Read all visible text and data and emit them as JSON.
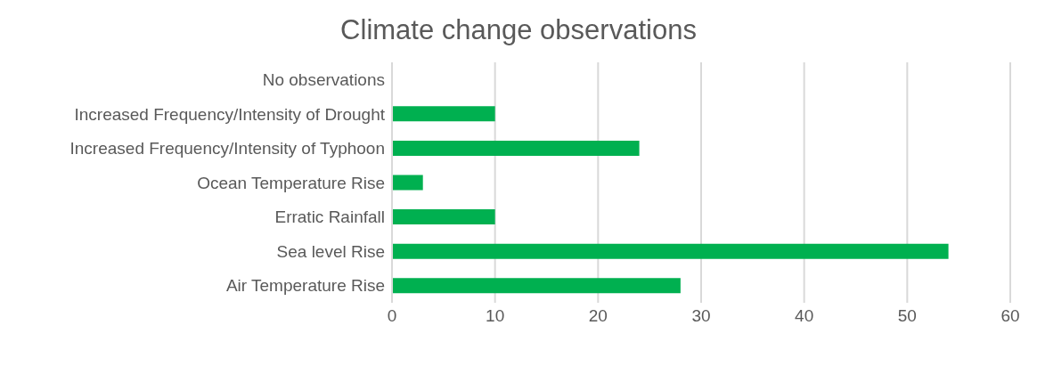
{
  "chart_data": {
    "type": "bar",
    "orientation": "horizontal",
    "title": "Climate change observations",
    "categories": [
      "No observations",
      "Increased Frequency/Intensity of Drought",
      "Increased Frequency/Intensity of Typhoon",
      "Ocean Temperature Rise",
      "Erratic Rainfall",
      "Sea level Rise",
      "Air Temperature Rise"
    ],
    "values": [
      0,
      10,
      24,
      3,
      10,
      54,
      28
    ],
    "color": "#00b050",
    "xlim": [
      0,
      60
    ],
    "xticks": [
      0,
      10,
      20,
      30,
      40,
      50,
      60
    ],
    "grid": "x"
  }
}
